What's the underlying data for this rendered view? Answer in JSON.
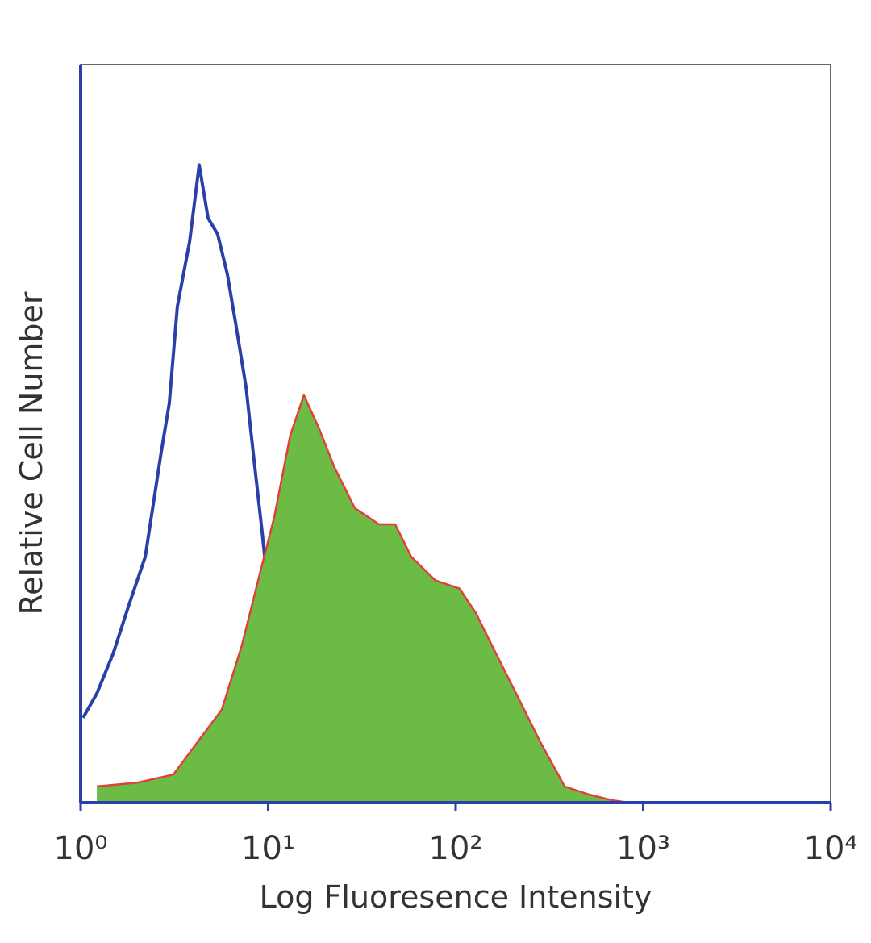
{
  "chart_data": {
    "type": "histogram-overlay",
    "xlabel": "Log Fluoresence Intensity",
    "ylabel": "Relative Cell Number",
    "xscale": "log",
    "xlim": [
      1,
      10000
    ],
    "xticks": [
      {
        "value": 1,
        "label": "10⁰"
      },
      {
        "value": 10,
        "label": "10¹"
      },
      {
        "value": 100,
        "label": "10²"
      },
      {
        "value": 1000,
        "label": "10³"
      },
      {
        "value": 10000,
        "label": "10⁴"
      }
    ],
    "ylim": [
      0,
      100
    ],
    "series": [
      {
        "color": "#2b3fa8",
        "filled": false,
        "x": [
          1.03,
          1.22,
          1.49,
          1.81,
          2.21,
          2.69,
          2.97,
          3.28,
          3.81,
          4.29,
          4.78,
          5.38,
          6.06,
          6.7,
          7.62,
          8.41,
          9.29,
          10.3,
          11.3,
          13.1,
          16.0,
          19.5,
          23.8
        ],
        "values": [
          11.5,
          14.8,
          20.2,
          26.8,
          33.3,
          47.5,
          54.1,
          67.2,
          76.0,
          86.4,
          79.2,
          77.0,
          71.6,
          65.0,
          56.3,
          46.4,
          36.6,
          25.7,
          14.8,
          6.0,
          1.6,
          0.5,
          0
        ]
      },
      {
        "color": "#6cbb45",
        "edge_color": "#e0403a",
        "filled": true,
        "x": [
          1.22,
          2.0,
          3.12,
          4.2,
          5.66,
          7.24,
          8.84,
          10.8,
          13.1,
          15.5,
          18.6,
          22.6,
          29.0,
          39.0,
          47.6,
          58.0,
          78.0,
          105,
          128,
          156,
          210,
          283,
          381,
          513,
          690,
          841
        ],
        "values": [
          2.2,
          2.7,
          3.8,
          8.2,
          12.6,
          21.3,
          30.1,
          38.8,
          49.7,
          55.2,
          50.8,
          45.4,
          39.9,
          37.7,
          37.7,
          33.3,
          30.1,
          29.0,
          25.7,
          21.3,
          14.8,
          8.2,
          2.2,
          1.1,
          0.3,
          0
        ]
      }
    ]
  }
}
